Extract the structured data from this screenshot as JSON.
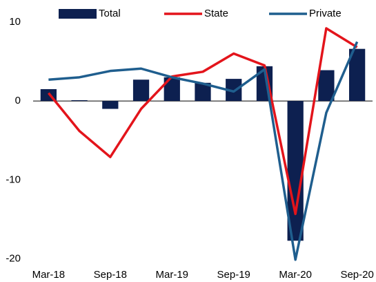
{
  "chart_data": {
    "type": "bar-line",
    "categories": [
      "Mar-18",
      null,
      "Sep-18",
      null,
      "Mar-19",
      null,
      "Sep-19",
      null,
      "Mar-20",
      null,
      "Sep-20"
    ],
    "series": [
      {
        "name": "Total",
        "type": "bar",
        "color": "#0d2050",
        "values": [
          1.5,
          0.1,
          -1.0,
          2.7,
          3.0,
          2.3,
          2.8,
          4.4,
          -17.7,
          3.9,
          6.6
        ]
      },
      {
        "name": "State",
        "type": "line",
        "color": "#e3141b",
        "values": [
          1.0,
          -3.8,
          -7.1,
          -1.0,
          3.1,
          3.7,
          6.0,
          4.5,
          -14.3,
          9.2,
          6.8
        ]
      },
      {
        "name": "Private",
        "type": "line",
        "color": "#1f5e8e",
        "values": [
          2.7,
          3.0,
          3.8,
          4.1,
          3.0,
          2.2,
          1.2,
          4.0,
          -20.1,
          -1.5,
          7.5
        ]
      }
    ],
    "ylim": [
      -21,
      12
    ],
    "yticks": [
      10,
      0,
      -10,
      -20
    ],
    "grid": false,
    "legend": "top"
  }
}
